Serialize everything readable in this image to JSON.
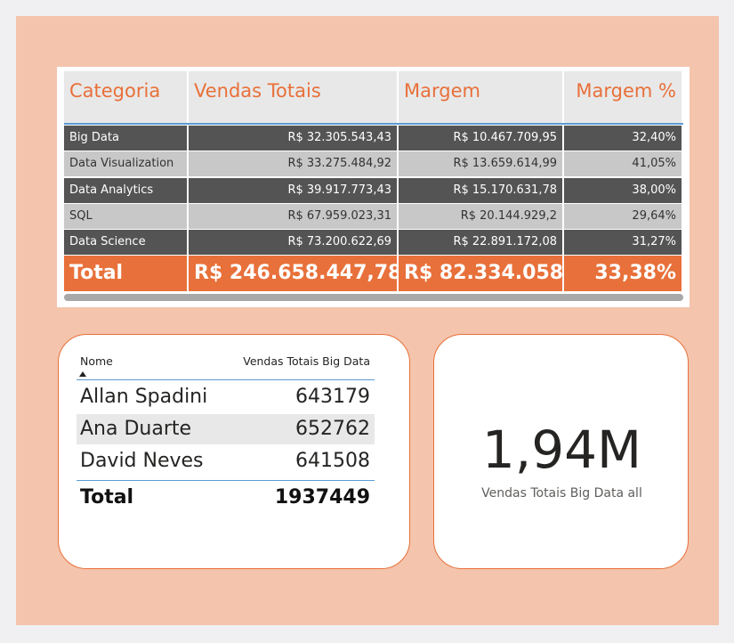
{
  "table": {
    "columns": [
      "Categoria",
      "Vendas Totais",
      "Margem",
      "Margem %"
    ],
    "rows": [
      [
        "Big Data",
        "R$ 32.305.543,43",
        "R$ 10.467.709,95",
        "32,40%"
      ],
      [
        "Data Visualization",
        "R$ 33.275.484,92",
        "R$ 13.659.614,99",
        "41,05%"
      ],
      [
        "Data Analytics",
        "R$ 39.917.773,43",
        "R$ 15.170.631,78",
        "38,00%"
      ],
      [
        "SQL",
        "R$ 67.959.023,31",
        "R$ 20.144.929,2",
        "29,64%"
      ],
      [
        "Data Science",
        "R$ 73.200.622,69",
        "R$ 22.891.172,08",
        "31,27%"
      ]
    ],
    "total": [
      "Total",
      "R$ 246.658.447,78",
      "R$ 82.334.058",
      "33,38%"
    ]
  },
  "names_table": {
    "columns": [
      "Nome",
      "Vendas Totais Big Data"
    ],
    "rows": [
      [
        "Allan Spadini",
        643179
      ],
      [
        "Ana Duarte",
        652762
      ],
      [
        "David Neves",
        641508
      ]
    ],
    "total": [
      "Total",
      1937449
    ]
  },
  "card": {
    "value": "1,94M",
    "label": "Vendas Totais Big Data all"
  }
}
